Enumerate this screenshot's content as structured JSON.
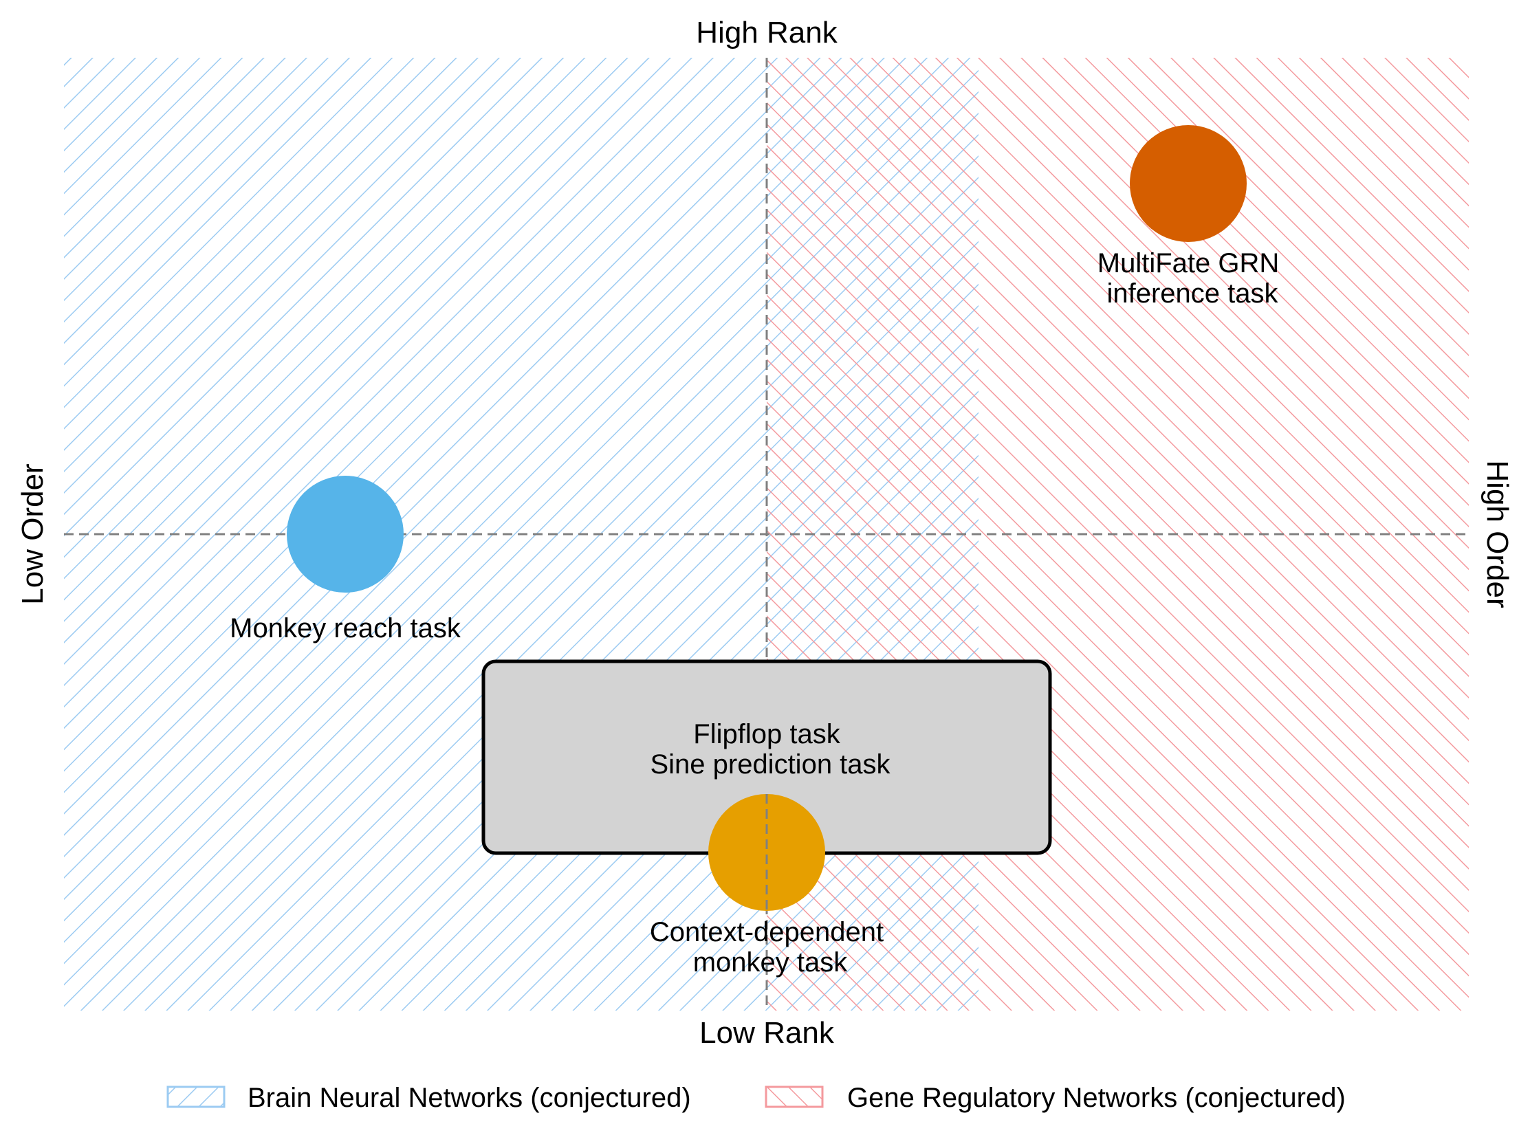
{
  "axes": {
    "top": "High Rank",
    "bottom": "Low Rank",
    "left": "Low Order",
    "right": "High Order"
  },
  "points": [
    {
      "id": "monkey-reach",
      "label_lines": [
        "Monkey reach task"
      ],
      "color": "#56B4E9"
    },
    {
      "id": "multifate",
      "label_lines": [
        "MultiFate GRN",
        "inference task"
      ],
      "color": "#D55E00"
    },
    {
      "id": "context-dependent",
      "label_lines": [
        "Context-dependent",
        "monkey task"
      ],
      "color": "#E69F00"
    }
  ],
  "box": {
    "lines": [
      "Flipflop task",
      "Sine prediction task"
    ],
    "fill": "#d3d3d3"
  },
  "legend": {
    "items": [
      {
        "label": "Brain Neural Networks (conjectured)",
        "color": "#9ccbf2"
      },
      {
        "label": "Gene Regulatory Networks (conjectured)",
        "color": "#f49a9e"
      }
    ]
  },
  "colors": {
    "brain_hatch": "#9ccbf2",
    "gene_hatch": "#f49a9e",
    "divider": "#808080"
  }
}
